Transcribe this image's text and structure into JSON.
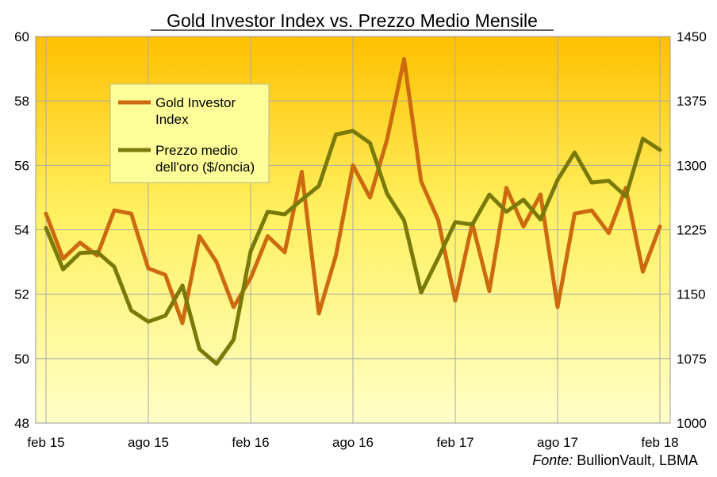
{
  "chart_data": {
    "type": "line",
    "title": "Gold Investor Index vs. Prezzo Medio Mensile",
    "source_prefix": "Fonte:",
    "source_text": " BullionVault, LBMA",
    "x_ticks": [
      "feb 15",
      "ago 15",
      "feb 16",
      "ago 16",
      "feb 17",
      "ago 17",
      "feb 18"
    ],
    "x_start": "feb 15",
    "x_end": "mar 18",
    "y_left": {
      "lim": [
        48,
        60
      ],
      "ticks": [
        "48",
        "50",
        "52",
        "54",
        "56",
        "58",
        "60"
      ]
    },
    "y_right": {
      "lim": [
        1000,
        1450
      ],
      "ticks": [
        "1000",
        "1075",
        "1150",
        "1225",
        "1300",
        "1375",
        "1450"
      ]
    },
    "grid": true,
    "legend_position": "top-left",
    "background_gradient": [
      "#ffc000",
      "#ffffc8"
    ],
    "series": [
      {
        "name": "Gold Investor Index",
        "axis": "left",
        "color": "#cc6a10",
        "values": [
          54.5,
          53.1,
          53.6,
          53.2,
          54.6,
          54.5,
          52.8,
          52.6,
          51.1,
          53.8,
          53.0,
          51.6,
          52.5,
          53.8,
          53.3,
          55.8,
          51.4,
          53.2,
          56.0,
          55.0,
          56.8,
          59.3,
          55.5,
          54.3,
          51.8,
          54.2,
          52.1,
          55.3,
          54.1,
          55.1,
          51.6,
          54.5,
          54.6,
          53.9,
          55.3,
          52.7,
          54.1
        ]
      },
      {
        "name": "Prezzo medio dell'oro ($/oncia)",
        "axis": "right",
        "color": "#7a7a0a",
        "values": [
          1227,
          1179,
          1198,
          1199,
          1182,
          1131,
          1118,
          1125,
          1160,
          1086,
          1069,
          1097,
          1200,
          1246,
          1243,
          1260,
          1276,
          1336,
          1340,
          1326,
          1267,
          1236,
          1152,
          1192,
          1234,
          1231,
          1266,
          1246,
          1260,
          1237,
          1283,
          1315,
          1280,
          1282,
          1264,
          1331,
          1318
        ]
      }
    ]
  }
}
